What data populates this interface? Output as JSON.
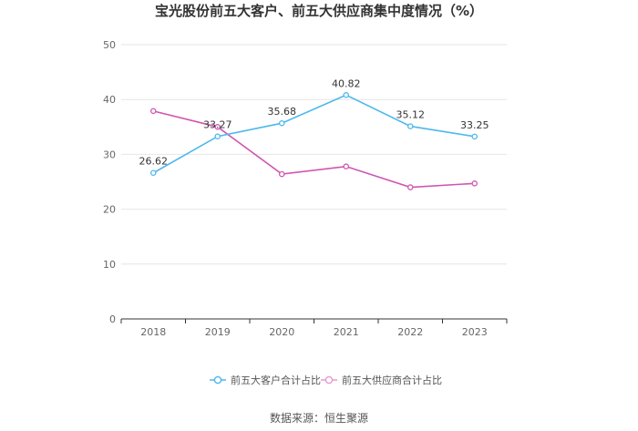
{
  "chart_data": {
    "type": "line",
    "title": "宝光股份前五大客户、前五大供应商集中度情况（%）",
    "x": [
      "2018",
      "2019",
      "2020",
      "2021",
      "2022",
      "2023"
    ],
    "ylim": [
      0,
      50
    ],
    "yticks": [
      0,
      10,
      20,
      30,
      40,
      50
    ],
    "grid": true,
    "legend_position": "bottom",
    "series": [
      {
        "name": "前五大客户合计占比",
        "color": "#4db8ec",
        "values": [
          26.62,
          33.27,
          35.68,
          40.82,
          35.12,
          33.25
        ],
        "labels": [
          "26.62",
          "33.27",
          "35.68",
          "40.82",
          "35.12",
          "33.25"
        ]
      },
      {
        "name": "前五大供应商合计占比",
        "color": "#d056b0",
        "values": [
          37.9,
          35.0,
          26.4,
          27.8,
          24.0,
          24.7
        ]
      }
    ],
    "source": "数据来源：恒生聚源"
  }
}
